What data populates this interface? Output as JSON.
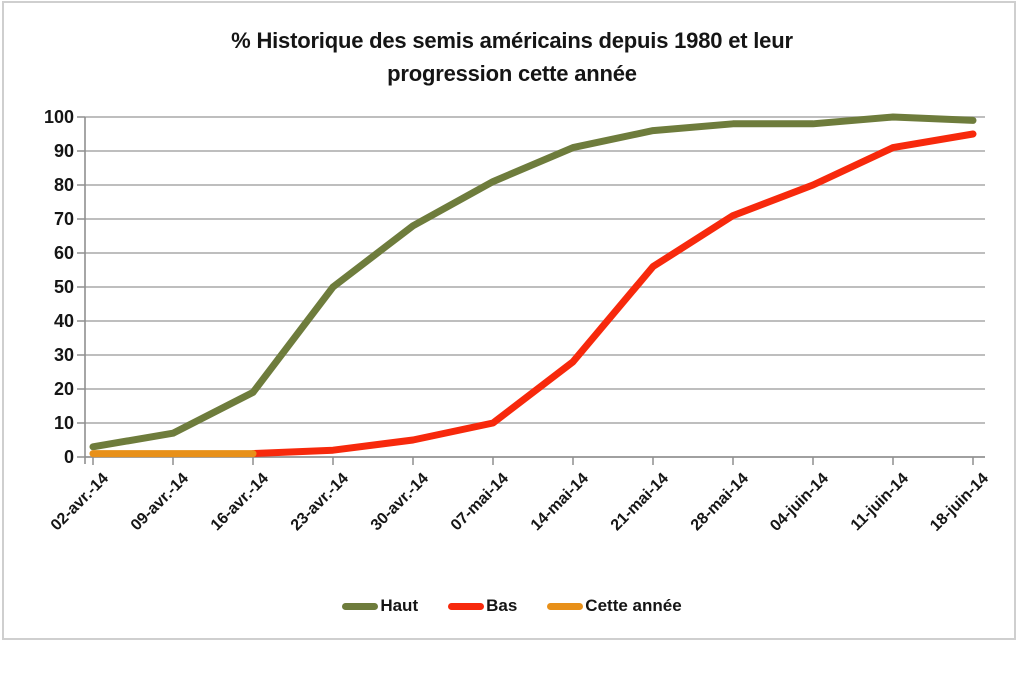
{
  "title": {
    "full": "% Historique des semis américains depuis 1980 et leur progression cette année",
    "line1": "% Historique des semis américains depuis 1980 et leur",
    "line2": "progression cette année"
  },
  "chart_data": {
    "type": "line",
    "title": "% Historique des semis américains depuis 1980 et leur progression cette année",
    "categories": [
      "02-avr.-14",
      "09-avr.-14",
      "16-avr.-14",
      "23-avr.-14",
      "30-avr.-14",
      "07-mai-14",
      "14-mai-14",
      "21-mai-14",
      "28-mai-14",
      "04-juin-14",
      "11-juin-14",
      "18-juin-14"
    ],
    "series": [
      {
        "name": "Haut",
        "color": "#6e7c3c",
        "start_index": 0,
        "values": [
          3,
          7,
          19,
          50,
          68,
          81,
          91,
          96,
          98,
          98,
          100,
          99
        ]
      },
      {
        "name": "Bas",
        "color": "#f7290c",
        "start_index": 2,
        "values": [
          1,
          2,
          5,
          10,
          28,
          56,
          71,
          80,
          91,
          95
        ]
      },
      {
        "name": "Cette année",
        "color": "#e89019",
        "start_index": 0,
        "values": [
          1,
          1,
          1
        ]
      }
    ],
    "xlabel": "",
    "ylabel": "",
    "ylim": [
      0,
      100
    ],
    "ytick_step": 10,
    "yticks": [
      0,
      10,
      20,
      30,
      40,
      50,
      60,
      70,
      80,
      90,
      100
    ],
    "grid": "horizontal",
    "legend_position": "bottom"
  },
  "colors": {
    "gridline": "#a8a8a8",
    "axis": "#8f8f8f",
    "frame": "#cfcfcf",
    "text": "#151515",
    "background": "#ffffff"
  }
}
